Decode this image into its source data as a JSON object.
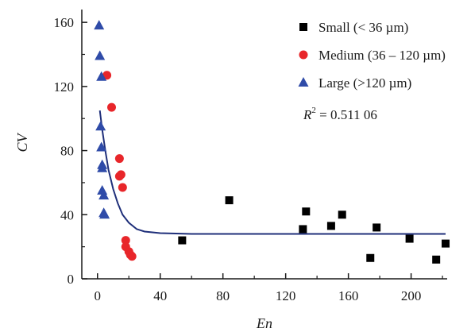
{
  "chart_data": {
    "type": "scatter",
    "xlabel": "En",
    "ylabel": "CV",
    "xlim": [
      -10,
      223
    ],
    "ylim": [
      0,
      168
    ],
    "x_ticks": [
      0,
      40,
      80,
      120,
      160,
      200
    ],
    "y_ticks": [
      0,
      40,
      80,
      120,
      160
    ],
    "x_tick_labels": [
      "0",
      "40",
      "80",
      "120",
      "160",
      "200"
    ],
    "y_tick_labels": [
      "0",
      "40",
      "80",
      "120",
      "160"
    ],
    "grid": false,
    "legend_position": "top-right",
    "series": [
      {
        "name": "Small (< 36 µm)",
        "marker": "square",
        "color": "#000000",
        "points": [
          {
            "x": 54,
            "y": 24
          },
          {
            "x": 84,
            "y": 49
          },
          {
            "x": 131,
            "y": 31
          },
          {
            "x": 133,
            "y": 42
          },
          {
            "x": 149,
            "y": 33
          },
          {
            "x": 156,
            "y": 40
          },
          {
            "x": 174,
            "y": 13
          },
          {
            "x": 178,
            "y": 32
          },
          {
            "x": 199,
            "y": 25
          },
          {
            "x": 216,
            "y": 12
          },
          {
            "x": 222,
            "y": 22
          }
        ]
      },
      {
        "name": "Medium (36 – 120 µm)",
        "marker": "circle",
        "color": "#e8262a",
        "points": [
          {
            "x": 6,
            "y": 127
          },
          {
            "x": 9,
            "y": 107
          },
          {
            "x": 14,
            "y": 75
          },
          {
            "x": 14,
            "y": 64
          },
          {
            "x": 15,
            "y": 65
          },
          {
            "x": 16,
            "y": 57
          },
          {
            "x": 18,
            "y": 24
          },
          {
            "x": 18,
            "y": 20
          },
          {
            "x": 20,
            "y": 17
          },
          {
            "x": 21,
            "y": 15
          },
          {
            "x": 22,
            "y": 14
          }
        ]
      },
      {
        "name": "Large (>120 µm)",
        "marker": "triangle",
        "color": "#2f4ba8",
        "points": [
          {
            "x": 1,
            "y": 158
          },
          {
            "x": 1.5,
            "y": 139
          },
          {
            "x": 2.5,
            "y": 126
          },
          {
            "x": 2,
            "y": 95
          },
          {
            "x": 2.5,
            "y": 82
          },
          {
            "x": 3,
            "y": 71
          },
          {
            "x": 3,
            "y": 69
          },
          {
            "x": 3,
            "y": 55
          },
          {
            "x": 4,
            "y": 52
          },
          {
            "x": 4,
            "y": 41
          },
          {
            "x": 4.5,
            "y": 40
          }
        ]
      }
    ],
    "fit_curve": {
      "color": "#1f2f7a",
      "points": [
        {
          "x": 1.5,
          "y": 105
        },
        {
          "x": 3,
          "y": 93
        },
        {
          "x": 5,
          "y": 80
        },
        {
          "x": 7,
          "y": 68
        },
        {
          "x": 10,
          "y": 56
        },
        {
          "x": 13,
          "y": 47
        },
        {
          "x": 16,
          "y": 40
        },
        {
          "x": 20,
          "y": 35
        },
        {
          "x": 25,
          "y": 31
        },
        {
          "x": 30,
          "y": 29.5
        },
        {
          "x": 40,
          "y": 28.5
        },
        {
          "x": 60,
          "y": 28
        },
        {
          "x": 100,
          "y": 28
        },
        {
          "x": 160,
          "y": 28
        },
        {
          "x": 222,
          "y": 28
        }
      ]
    },
    "annotation": {
      "r_symbol": "R",
      "exponent": "2",
      "value_text": " = 0.511 06"
    }
  }
}
